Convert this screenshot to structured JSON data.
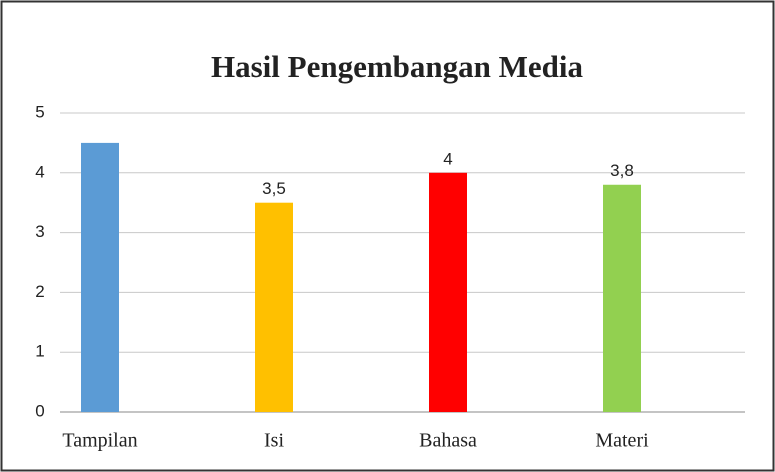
{
  "chart_data": {
    "type": "bar",
    "title": "Hasil Pengembangan Media",
    "categories": [
      "Tampilan",
      "Isi",
      "Bahasa",
      "Materi"
    ],
    "values": [
      4.5,
      3.5,
      4,
      3.8
    ],
    "value_labels": [
      null,
      "3,5",
      "4",
      "3,8"
    ],
    "colors": [
      "#5b9bd5",
      "#ffc000",
      "#ff0000",
      "#92d050"
    ],
    "ylim": [
      0,
      5
    ],
    "yticks": [
      0,
      1,
      2,
      3,
      4,
      5
    ],
    "grid": true
  }
}
